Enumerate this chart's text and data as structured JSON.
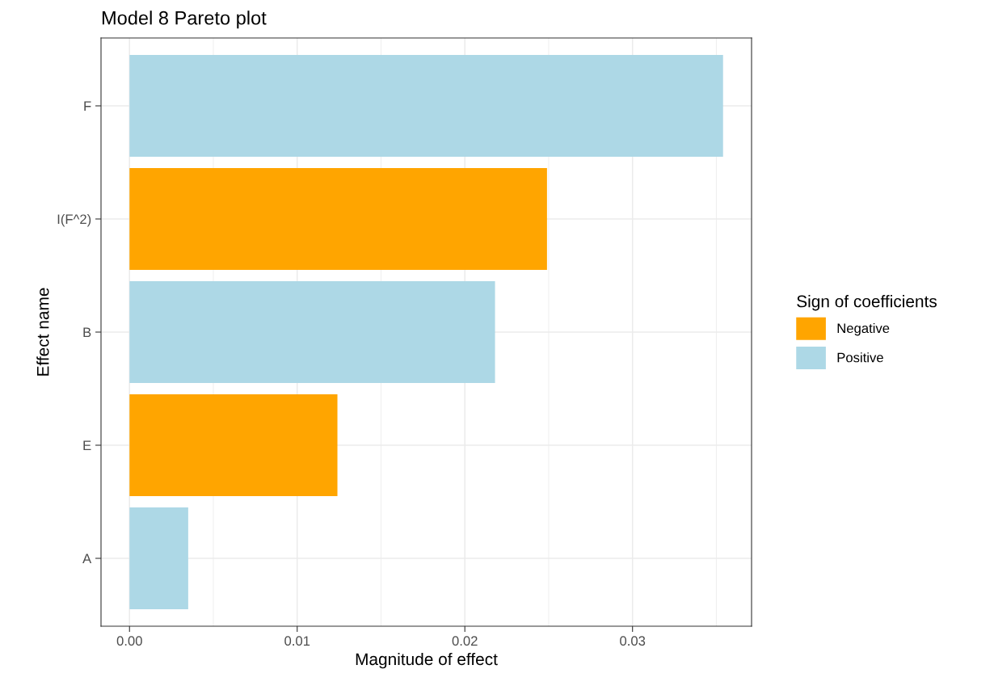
{
  "chart_data": {
    "type": "bar",
    "orientation": "horizontal",
    "title": "Model 8 Pareto plot",
    "xlabel": "Magnitude of effect",
    "ylabel": "Effect name",
    "legend_title": "Sign of coefficients",
    "categories": [
      "F",
      "I(F^2)",
      "B",
      "E",
      "A"
    ],
    "series": [
      {
        "name": "Negative",
        "color": "#ffa500",
        "values": [
          null,
          0.0249,
          null,
          0.0124,
          null
        ]
      },
      {
        "name": "Positive",
        "color": "#add8e6",
        "values": [
          0.0354,
          null,
          0.0218,
          null,
          0.0035
        ]
      }
    ],
    "xlim": [
      -0.0017,
      0.0371
    ],
    "xticks": [
      {
        "value": 0,
        "label": "0.00"
      },
      {
        "value": 0.01,
        "label": "0.01"
      },
      {
        "value": 0.02,
        "label": "0.02"
      },
      {
        "value": 0.03,
        "label": "0.03"
      }
    ],
    "grid": true,
    "legend": "right"
  }
}
